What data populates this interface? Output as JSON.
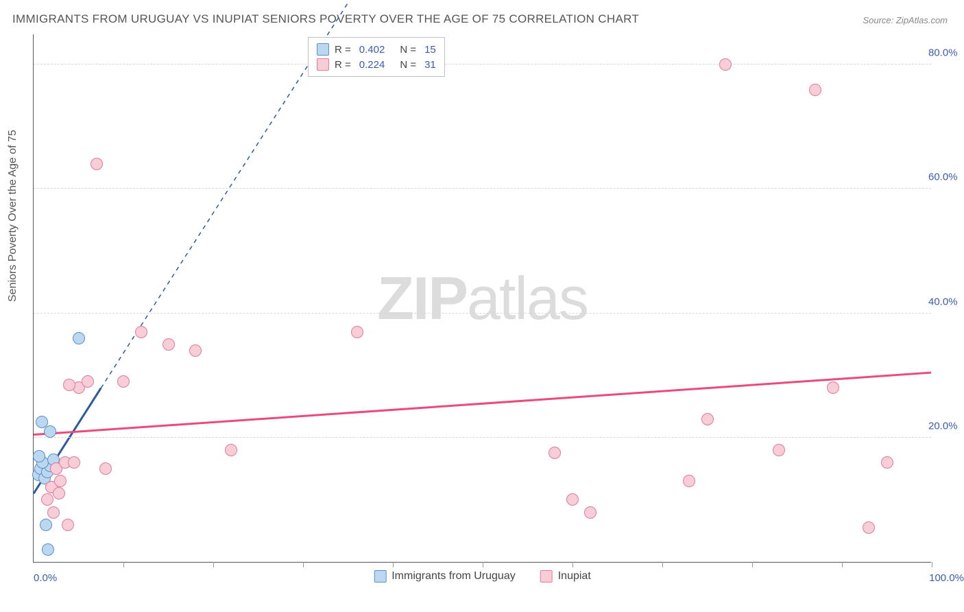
{
  "title": "IMMIGRANTS FROM URUGUAY VS INUPIAT SENIORS POVERTY OVER THE AGE OF 75 CORRELATION CHART",
  "source": "Source: ZipAtlas.com",
  "watermark_bold": "ZIP",
  "watermark_light": "atlas",
  "chart": {
    "type": "scatter",
    "ylabel": "Seniors Poverty Over the Age of 75",
    "xlim": [
      0,
      100
    ],
    "ylim": [
      0,
      85
    ],
    "yticks": [
      20,
      40,
      60,
      80
    ],
    "ytick_labels": [
      "20.0%",
      "40.0%",
      "60.0%",
      "80.0%"
    ],
    "xtick_left": "0.0%",
    "xtick_right": "100.0%",
    "vtick_positions": [
      0,
      10,
      20,
      30,
      40,
      50,
      60,
      70,
      80,
      90,
      100
    ],
    "background_color": "#ffffff",
    "grid_color": "#d8d8d8",
    "marker_size": 18,
    "series": [
      {
        "name": "Immigrants from Uruguay",
        "fill": "#bcd7f0",
        "stroke": "#5a8fc9",
        "r_value": "0.402",
        "n_value": "15",
        "regression": {
          "x1": 0,
          "y1": 11,
          "x2": 7.5,
          "y2": 28,
          "dash_to_x": 35,
          "dash_to_y": 90,
          "color": "#2c5aa0",
          "width": 3
        },
        "points": [
          [
            0.5,
            14
          ],
          [
            0.8,
            15
          ],
          [
            1.2,
            13.5
          ],
          [
            1.5,
            14.5
          ],
          [
            1.8,
            15.5
          ],
          [
            1.0,
            16
          ],
          [
            0.6,
            17
          ],
          [
            2.2,
            16.5
          ],
          [
            1.8,
            21
          ],
          [
            0.9,
            22.5
          ],
          [
            5.0,
            36
          ],
          [
            1.4,
            6
          ],
          [
            1.6,
            2
          ],
          [
            2.5,
            15
          ],
          [
            2.0,
            12
          ]
        ]
      },
      {
        "name": "Inupiat",
        "fill": "#f7cdd8",
        "stroke": "#e27a98",
        "r_value": "0.224",
        "n_value": "31",
        "regression": {
          "x1": 0,
          "y1": 20.5,
          "x2": 100,
          "y2": 30.5,
          "color": "#e94b7a",
          "width": 3
        },
        "points": [
          [
            1.5,
            10
          ],
          [
            2.0,
            12
          ],
          [
            2.8,
            11
          ],
          [
            2.5,
            15
          ],
          [
            3.5,
            16
          ],
          [
            3.0,
            13
          ],
          [
            4.5,
            16
          ],
          [
            2.2,
            8
          ],
          [
            8.0,
            15
          ],
          [
            5.0,
            28
          ],
          [
            6.0,
            29
          ],
          [
            4.0,
            28.5
          ],
          [
            10.0,
            29
          ],
          [
            15.0,
            35
          ],
          [
            18.0,
            34
          ],
          [
            12.0,
            37
          ],
          [
            7.0,
            64
          ],
          [
            36.0,
            37
          ],
          [
            22.0,
            18
          ],
          [
            58.0,
            17.5
          ],
          [
            60.0,
            10
          ],
          [
            62.0,
            8
          ],
          [
            73.0,
            13
          ],
          [
            77.0,
            80
          ],
          [
            75.0,
            23
          ],
          [
            83.0,
            18
          ],
          [
            89.0,
            28
          ],
          [
            87.0,
            76
          ],
          [
            93.0,
            5.5
          ],
          [
            95.0,
            16
          ],
          [
            3.8,
            6
          ]
        ]
      }
    ]
  },
  "legend_top_prefix_r": "R =",
  "legend_top_prefix_n": "N ="
}
